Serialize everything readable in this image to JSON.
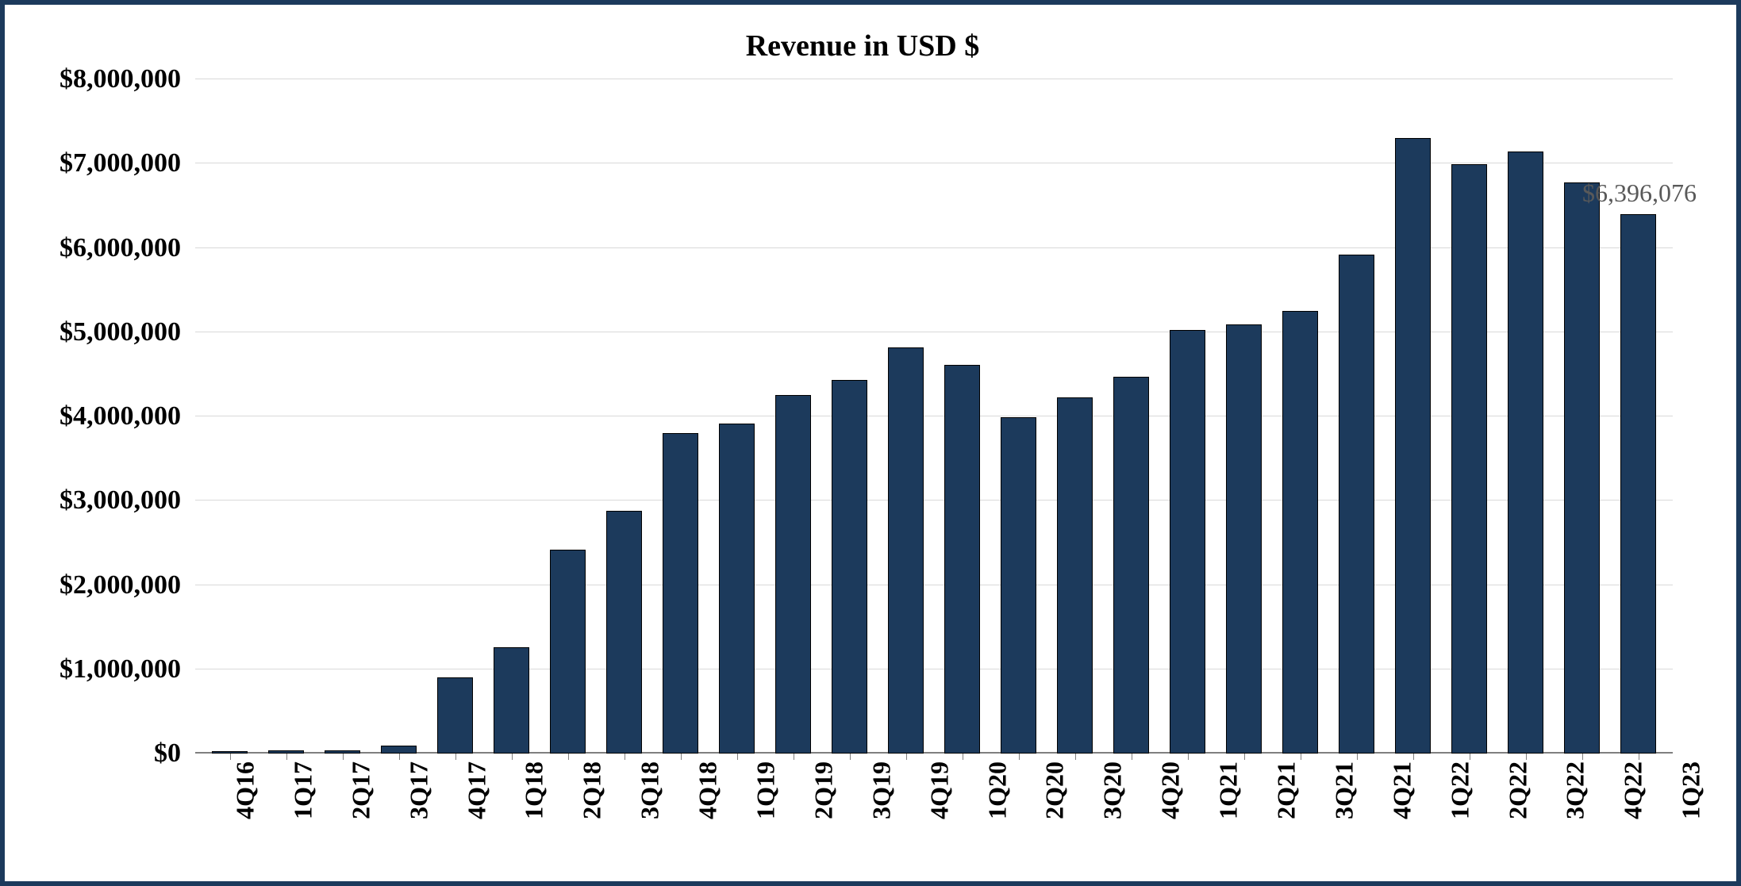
{
  "chart": {
    "type": "bar",
    "title": "Revenue in USD $",
    "title_fontsize": 38,
    "title_color": "#000000",
    "background_color": "#ffffff",
    "border_color": "#1c3a5c",
    "border_width": 6,
    "bar_color": "#1c3a5c",
    "bar_border_color": "#000000",
    "grid_color": "#d9d9d9",
    "axis_color": "#7f7f7f",
    "label_color": "#000000",
    "label_fontsize": 34,
    "xlabel_fontsize": 32,
    "data_label_color": "#595959",
    "font_family": "Times New Roman",
    "ylim": [
      0,
      8000000
    ],
    "ytick_step": 1000000,
    "ytick_labels": [
      "$0",
      "$1,000,000",
      "$2,000,000",
      "$3,000,000",
      "$4,000,000",
      "$5,000,000",
      "$6,000,000",
      "$7,000,000",
      "$8,000,000"
    ],
    "categories": [
      "4Q16",
      "1Q17",
      "2Q17",
      "3Q17",
      "4Q17",
      "1Q18",
      "2Q18",
      "3Q18",
      "4Q18",
      "1Q19",
      "2Q19",
      "3Q19",
      "4Q19",
      "1Q20",
      "2Q20",
      "3Q20",
      "4Q20",
      "1Q21",
      "2Q21",
      "3Q21",
      "4Q21",
      "1Q22",
      "2Q22",
      "3Q22",
      "4Q22",
      "1Q23"
    ],
    "values": [
      30000,
      40000,
      40000,
      90000,
      900000,
      1260000,
      2420000,
      2880000,
      3800000,
      3920000,
      4250000,
      4430000,
      4820000,
      4610000,
      3990000,
      4230000,
      4470000,
      5030000,
      5090000,
      5250000,
      5920000,
      7300000,
      6990000,
      7140000,
      6780000,
      6396076
    ],
    "bar_width_ratio": 0.62,
    "data_label": {
      "text": "$6,396,076",
      "position_index": 25,
      "offset_x": -50,
      "offset_y": -40
    }
  }
}
